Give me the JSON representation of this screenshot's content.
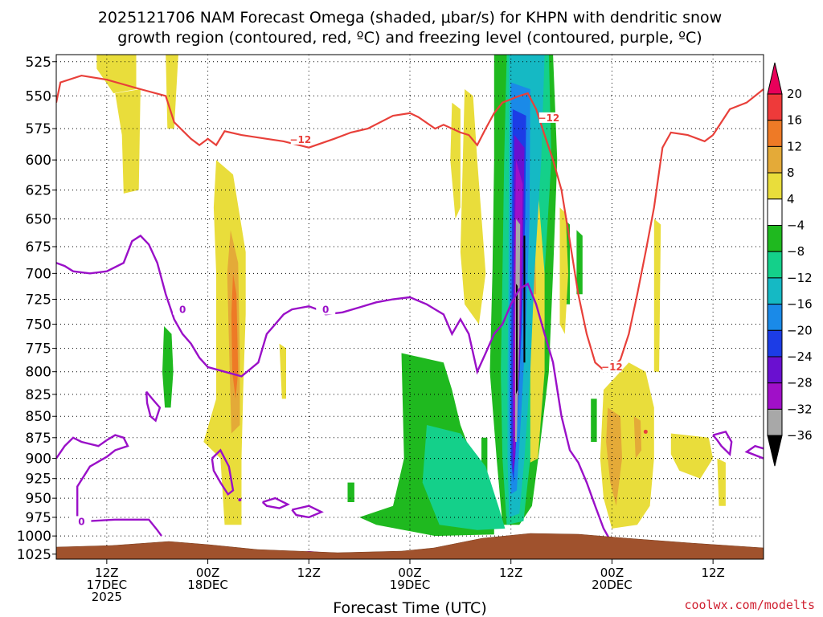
{
  "chart_data": {
    "type": "time-height contour",
    "title_line1": "2025121706 NAM Forecast Omega (shaded, μbar/s) for KHPN with dendritic snow",
    "title_line2": "growth region (contoured, red, ºC) and freezing level (contoured, purple, ºC)",
    "xlabel": "Forecast Time (UTC)",
    "credit": "coolwx.com/modelts",
    "y_levels": [
      "525",
      "550",
      "575",
      "600",
      "625",
      "650",
      "675",
      "700",
      "725",
      "750",
      "775",
      "800",
      "825",
      "850",
      "875",
      "900",
      "925",
      "950",
      "975",
      "1000",
      "1025"
    ],
    "x_ticks": [
      {
        "hour": 6,
        "lines": [
          "12Z",
          "17DEC",
          "2025"
        ]
      },
      {
        "hour": 18,
        "lines": [
          "00Z",
          "18DEC"
        ]
      },
      {
        "hour": 30,
        "lines": [
          "12Z"
        ]
      },
      {
        "hour": 42,
        "lines": [
          "00Z",
          "19DEC"
        ]
      },
      {
        "hour": 54,
        "lines": [
          "12Z"
        ]
      },
      {
        "hour": 66,
        "lines": [
          "00Z",
          "20DEC"
        ]
      },
      {
        "hour": 78,
        "lines": [
          "12Z"
        ]
      }
    ],
    "x_range_hours": [
      0,
      84
    ],
    "colorbar": {
      "labels": [
        "20",
        "16",
        "12",
        "8",
        "4",
        "−4",
        "−8",
        "−12",
        "−16",
        "−20",
        "−24",
        "−28",
        "−32",
        "−36"
      ],
      "colors": [
        "#e8005a",
        "#ee3a3a",
        "#ee7a26",
        "#e4aa38",
        "#e9dd3b",
        "#ffffff",
        "#1fb91f",
        "#14d08a",
        "#15b9c4",
        "#1a8ae8",
        "#1c3ce6",
        "#6a10d0",
        "#a010c8",
        "#a8a8a8",
        "#000000"
      ]
    },
    "contour_labels": {
      "dgz": "−12",
      "freezing": "0"
    },
    "series": [
      {
        "name": "Dendritic growth zone −12 ºC (red)",
        "points": [
          [
            0,
            555
          ],
          [
            0.5,
            540
          ],
          [
            3,
            535
          ],
          [
            6,
            538
          ],
          [
            10,
            545
          ],
          [
            13,
            550
          ],
          [
            14,
            570
          ],
          [
            16,
            583
          ],
          [
            17,
            588
          ],
          [
            18,
            583
          ],
          [
            19,
            588
          ],
          [
            20,
            577
          ],
          [
            22,
            580
          ],
          [
            25,
            583
          ],
          [
            27,
            585
          ],
          [
            30,
            590
          ],
          [
            33,
            583
          ],
          [
            35,
            578
          ],
          [
            37,
            575
          ],
          [
            40,
            565
          ],
          [
            42,
            563
          ],
          [
            43,
            566
          ],
          [
            45,
            575
          ],
          [
            46,
            572
          ],
          [
            48,
            578
          ],
          [
            49,
            580
          ],
          [
            50,
            588
          ],
          [
            51,
            575
          ],
          [
            52,
            563
          ],
          [
            53,
            555
          ],
          [
            55,
            550
          ],
          [
            56,
            548
          ],
          [
            57,
            560
          ],
          [
            58,
            580
          ],
          [
            59,
            600
          ],
          [
            60,
            625
          ],
          [
            61,
            670
          ],
          [
            62,
            720
          ],
          [
            63,
            760
          ],
          [
            64,
            790
          ],
          [
            65,
            798
          ],
          [
            66,
            796
          ],
          [
            67,
            787
          ],
          [
            68,
            760
          ],
          [
            69,
            720
          ],
          [
            70,
            680
          ],
          [
            71,
            640
          ],
          [
            72,
            590
          ],
          [
            73,
            578
          ],
          [
            75,
            580
          ],
          [
            77,
            585
          ],
          [
            78,
            580
          ],
          [
            80,
            560
          ],
          [
            82,
            555
          ],
          [
            84,
            545
          ]
        ]
      },
      {
        "name": "Freezing level 0 ºC (purple)",
        "points": [
          [
            0,
            690
          ],
          [
            1,
            693
          ],
          [
            2,
            698
          ],
          [
            4,
            700
          ],
          [
            6,
            698
          ],
          [
            8,
            690
          ],
          [
            9,
            670
          ],
          [
            10,
            665
          ],
          [
            11,
            673
          ],
          [
            12,
            690
          ],
          [
            13,
            720
          ],
          [
            14,
            745
          ],
          [
            15,
            760
          ],
          [
            16,
            770
          ],
          [
            17,
            785
          ],
          [
            18,
            795
          ],
          [
            20,
            800
          ],
          [
            22,
            805
          ],
          [
            24,
            790
          ],
          [
            25,
            760
          ],
          [
            26,
            750
          ],
          [
            27,
            740
          ],
          [
            28,
            735
          ],
          [
            30,
            732
          ],
          [
            31,
            735
          ],
          [
            32,
            740
          ],
          [
            34,
            738
          ],
          [
            36,
            733
          ],
          [
            38,
            728
          ],
          [
            40,
            725
          ],
          [
            42,
            723
          ],
          [
            44,
            730
          ],
          [
            45,
            735
          ],
          [
            46,
            740
          ],
          [
            47,
            760
          ],
          [
            48,
            745
          ],
          [
            49,
            760
          ],
          [
            50,
            800
          ],
          [
            51,
            780
          ],
          [
            52,
            760
          ],
          [
            53,
            750
          ],
          [
            54,
            730
          ],
          [
            55,
            715
          ],
          [
            56,
            710
          ],
          [
            57,
            730
          ],
          [
            58,
            760
          ],
          [
            59,
            790
          ],
          [
            60,
            850
          ],
          [
            61,
            890
          ],
          [
            62,
            905
          ],
          [
            63,
            930
          ],
          [
            64,
            960
          ],
          [
            65,
            990
          ],
          [
            66,
            1010
          ]
        ]
      }
    ],
    "legend": "colorbar at right"
  }
}
